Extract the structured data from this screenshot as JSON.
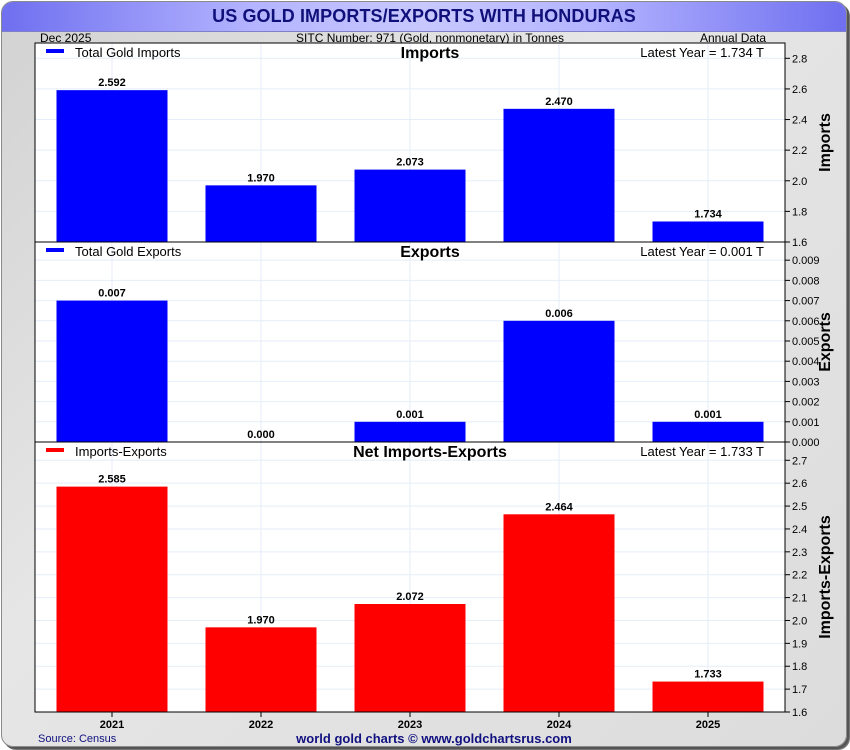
{
  "header": {
    "title": "US GOLD IMPORTS/EXPORTS WITH HONDURAS",
    "date": "Dec  2025",
    "subtitle": "SITC Number: 971 (Gold, nonmonetary) in Tonnes",
    "frequency": "Annual Data"
  },
  "footer": {
    "source": "Source: Census",
    "credit": "world gold charts © www.goldchartsrus.com"
  },
  "colors": {
    "imports": "#0000ff",
    "exports": "#0000ff",
    "net": "#ff0000",
    "title": "#10107a",
    "footer": "#101080",
    "grid": "#e4eef8"
  },
  "chart_data": [
    {
      "type": "bar",
      "title": "Imports",
      "legend": "Total Gold Imports",
      "legend_position": "top-left",
      "latest": "Latest Year = 1.734 T",
      "ylabel": "Imports",
      "categories": [
        "2021",
        "2022",
        "2023",
        "2024",
        "2025"
      ],
      "values": [
        2.592,
        1.97,
        2.073,
        2.47,
        1.734
      ],
      "value_labels": [
        "2.592",
        "1.970",
        "2.073",
        "2.470",
        "1.734"
      ],
      "ylim": [
        1.6,
        2.9
      ],
      "yticks": [
        1.6,
        1.8,
        2.0,
        2.2,
        2.4,
        2.6,
        2.8
      ],
      "ytick_labels": [
        "1.6",
        "1.8",
        "2.0",
        "2.2",
        "2.4",
        "2.6",
        "2.8"
      ],
      "grid": true
    },
    {
      "type": "bar",
      "title": "Exports",
      "legend": "Total Gold Exports",
      "legend_position": "top-left",
      "latest": "Latest Year = 0.001 T",
      "ylabel": "Exports",
      "categories": [
        "2021",
        "2022",
        "2023",
        "2024",
        "2025"
      ],
      "values": [
        0.007,
        0.0,
        0.001,
        0.006,
        0.001
      ],
      "value_labels": [
        "0.007",
        "0.000",
        "0.001",
        "0.006",
        "0.001"
      ],
      "ylim": [
        0.0,
        0.0099
      ],
      "yticks": [
        0.0,
        0.001,
        0.002,
        0.003,
        0.004,
        0.005,
        0.006,
        0.007,
        0.008,
        0.009
      ],
      "ytick_labels": [
        "0.000",
        "0.001",
        "0.002",
        "0.003",
        "0.004",
        "0.005",
        "0.006",
        "0.007",
        "0.008",
        "0.009"
      ],
      "grid": true
    },
    {
      "type": "bar",
      "title": "Net Imports-Exports",
      "legend": "Imports-Exports",
      "legend_position": "top-left",
      "latest": "Latest Year = 1.733 T",
      "ylabel": "Imports-Exports",
      "categories": [
        "2021",
        "2022",
        "2023",
        "2024",
        "2025"
      ],
      "values": [
        2.585,
        1.97,
        2.072,
        2.464,
        1.733
      ],
      "value_labels": [
        "2.585",
        "1.970",
        "2.072",
        "2.464",
        "1.733"
      ],
      "ylim": [
        1.6,
        2.78
      ],
      "yticks": [
        1.6,
        1.7,
        1.8,
        1.9,
        2.0,
        2.1,
        2.2,
        2.3,
        2.4,
        2.5,
        2.6,
        2.7
      ],
      "ytick_labels": [
        "1.6",
        "1.7",
        "1.8",
        "1.9",
        "2.0",
        "2.1",
        "2.2",
        "2.3",
        "2.4",
        "2.5",
        "2.6",
        "2.7"
      ],
      "xtick_labels": [
        "2021",
        "2022",
        "2023",
        "2024",
        "2025"
      ],
      "grid": true
    }
  ]
}
